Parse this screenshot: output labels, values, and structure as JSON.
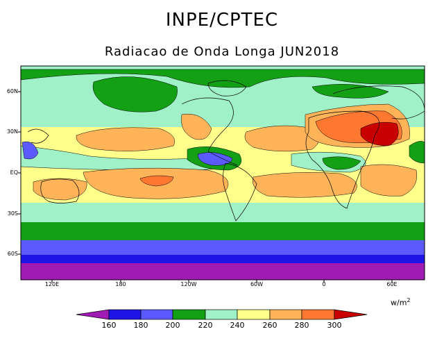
{
  "title": "INPE/CPTEC",
  "subtitle": "Radiacao de Onda Longa JUN2018",
  "units_base": "w/m",
  "units_exp": "2",
  "lat_labels": [
    "60N",
    "30N",
    "EQ",
    "30S",
    "60S"
  ],
  "lon_labels": [
    "120E",
    "180",
    "120W",
    "60W",
    "0",
    "60E"
  ],
  "colorbar": {
    "ticks": [
      "160",
      "180",
      "200",
      "220",
      "240",
      "260",
      "280",
      "300"
    ],
    "colors": [
      "#a01ab4",
      "#1e14e6",
      "#5a5aff",
      "#14a014",
      "#a0f0c8",
      "#ffff8c",
      "#ffb45a",
      "#ff7832",
      "#c80000"
    ]
  }
}
